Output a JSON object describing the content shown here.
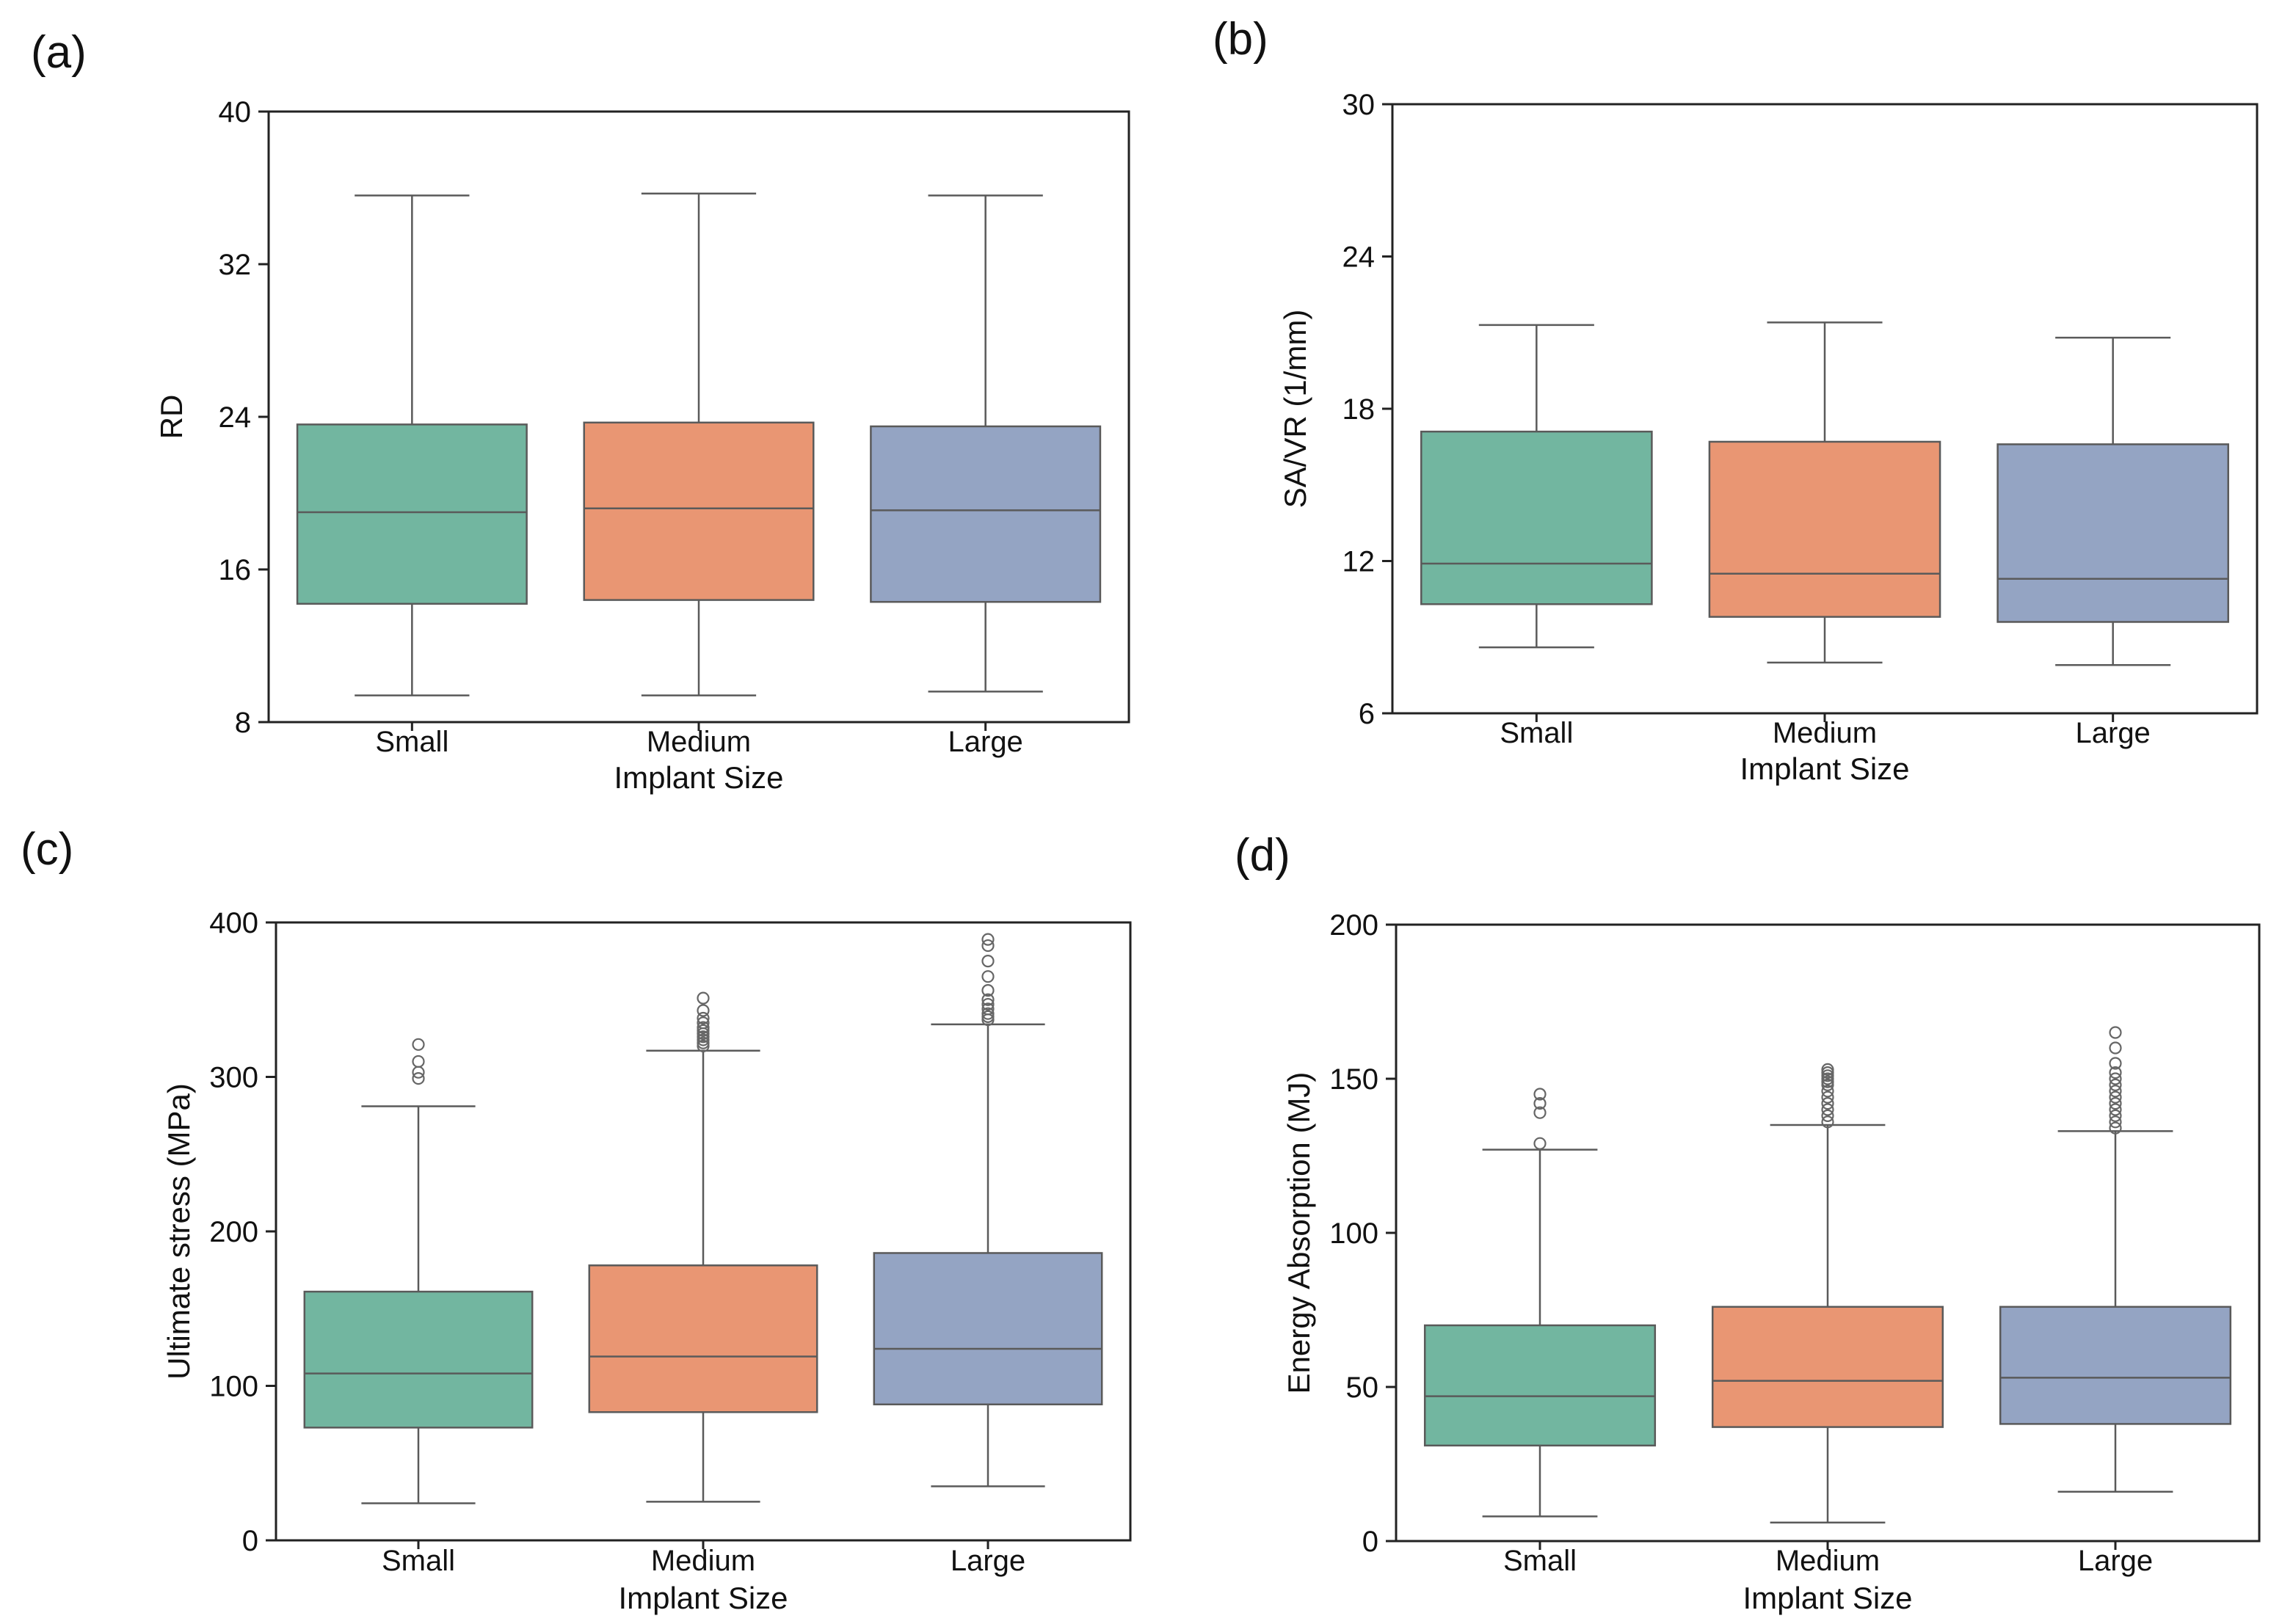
{
  "chart_data": [
    {
      "type": "box",
      "panel_label": "(a)",
      "xlabel": "Implant Size",
      "ylabel": "RD",
      "ylim": [
        8,
        40
      ],
      "yticks": [
        8,
        16,
        24,
        32,
        40
      ],
      "categories": [
        "Small",
        "Medium",
        "Large"
      ],
      "colors": [
        "#72b6a0",
        "#e99673",
        "#94a4c3"
      ],
      "boxes": [
        {
          "whisker_low": 9.4,
          "q1": 14.2,
          "median": 19.0,
          "q3": 23.6,
          "whisker_high": 35.6,
          "outliers": []
        },
        {
          "whisker_low": 9.4,
          "q1": 14.4,
          "median": 19.2,
          "q3": 23.7,
          "whisker_high": 35.7,
          "outliers": []
        },
        {
          "whisker_low": 9.6,
          "q1": 14.3,
          "median": 19.1,
          "q3": 23.5,
          "whisker_high": 35.6,
          "outliers": []
        }
      ]
    },
    {
      "type": "box",
      "panel_label": "(b)",
      "xlabel": "Implant Size",
      "ylabel": "SA/VR (1/mm)",
      "ylim": [
        6,
        30
      ],
      "yticks": [
        6,
        12,
        18,
        24,
        30
      ],
      "categories": [
        "Small",
        "Medium",
        "Large"
      ],
      "colors": [
        "#72b6a0",
        "#e99673",
        "#94a4c3"
      ],
      "boxes": [
        {
          "whisker_low": 8.6,
          "q1": 10.3,
          "median": 11.9,
          "q3": 17.1,
          "whisker_high": 21.3,
          "outliers": []
        },
        {
          "whisker_low": 8.0,
          "q1": 9.8,
          "median": 11.5,
          "q3": 16.7,
          "whisker_high": 21.4,
          "outliers": []
        },
        {
          "whisker_low": 7.9,
          "q1": 9.6,
          "median": 11.3,
          "q3": 16.6,
          "whisker_high": 20.8,
          "outliers": []
        }
      ]
    },
    {
      "type": "box",
      "panel_label": "(c)",
      "xlabel": "",
      "ylabel": "Ultimate stress  (MPa)",
      "ylim": [
        0,
        400
      ],
      "yticks": [
        0,
        100,
        200,
        300,
        400
      ],
      "categories": [
        "Small",
        "Medium",
        "Large"
      ],
      "colors": [
        "#72b6a0",
        "#e99673",
        "#94a4c3"
      ],
      "boxes": [
        {
          "whisker_low": 24,
          "q1": 73,
          "median": 108,
          "q3": 161,
          "whisker_high": 281,
          "outliers": [
            299,
            303,
            310,
            321
          ]
        },
        {
          "whisker_low": 25,
          "q1": 83,
          "median": 119,
          "q3": 178,
          "whisker_high": 317,
          "outliers": [
            320,
            322,
            324,
            326,
            328,
            330,
            332,
            335,
            338,
            343,
            351
          ]
        },
        {
          "whisker_low": 35,
          "q1": 88,
          "median": 124,
          "q3": 186,
          "whisker_high": 334,
          "outliers": [
            337,
            339,
            341,
            344,
            347,
            350,
            356,
            365,
            375,
            385,
            389
          ]
        }
      ]
    },
    {
      "type": "box",
      "panel_label": "(d)",
      "xlabel": "Implant Size",
      "ylabel": "Energy Absorption (MJ)",
      "ylim": [
        0,
        200
      ],
      "yticks": [
        0,
        50,
        100,
        150,
        200
      ],
      "categories": [
        "Small",
        "Medium",
        "Large"
      ],
      "colors": [
        "#72b6a0",
        "#e99673",
        "#94a4c3"
      ],
      "boxes": [
        {
          "whisker_low": 8,
          "q1": 31,
          "median": 47,
          "q3": 70,
          "whisker_high": 127,
          "outliers": [
            129,
            139,
            142,
            145
          ]
        },
        {
          "whisker_low": 6,
          "q1": 37,
          "median": 52,
          "q3": 76,
          "whisker_high": 135,
          "outliers": [
            136,
            138,
            140,
            142,
            144,
            146,
            148,
            149,
            150,
            151,
            152,
            153
          ]
        },
        {
          "whisker_low": 16,
          "q1": 38,
          "median": 53,
          "q3": 76,
          "whisker_high": 133,
          "outliers": [
            134,
            136,
            138,
            140,
            142,
            144,
            146,
            148,
            150,
            152,
            155,
            160,
            165
          ]
        }
      ]
    }
  ],
  "x_ticklabels_all": [
    "Small",
    "Medium",
    "Large",
    "Implant Size"
  ]
}
